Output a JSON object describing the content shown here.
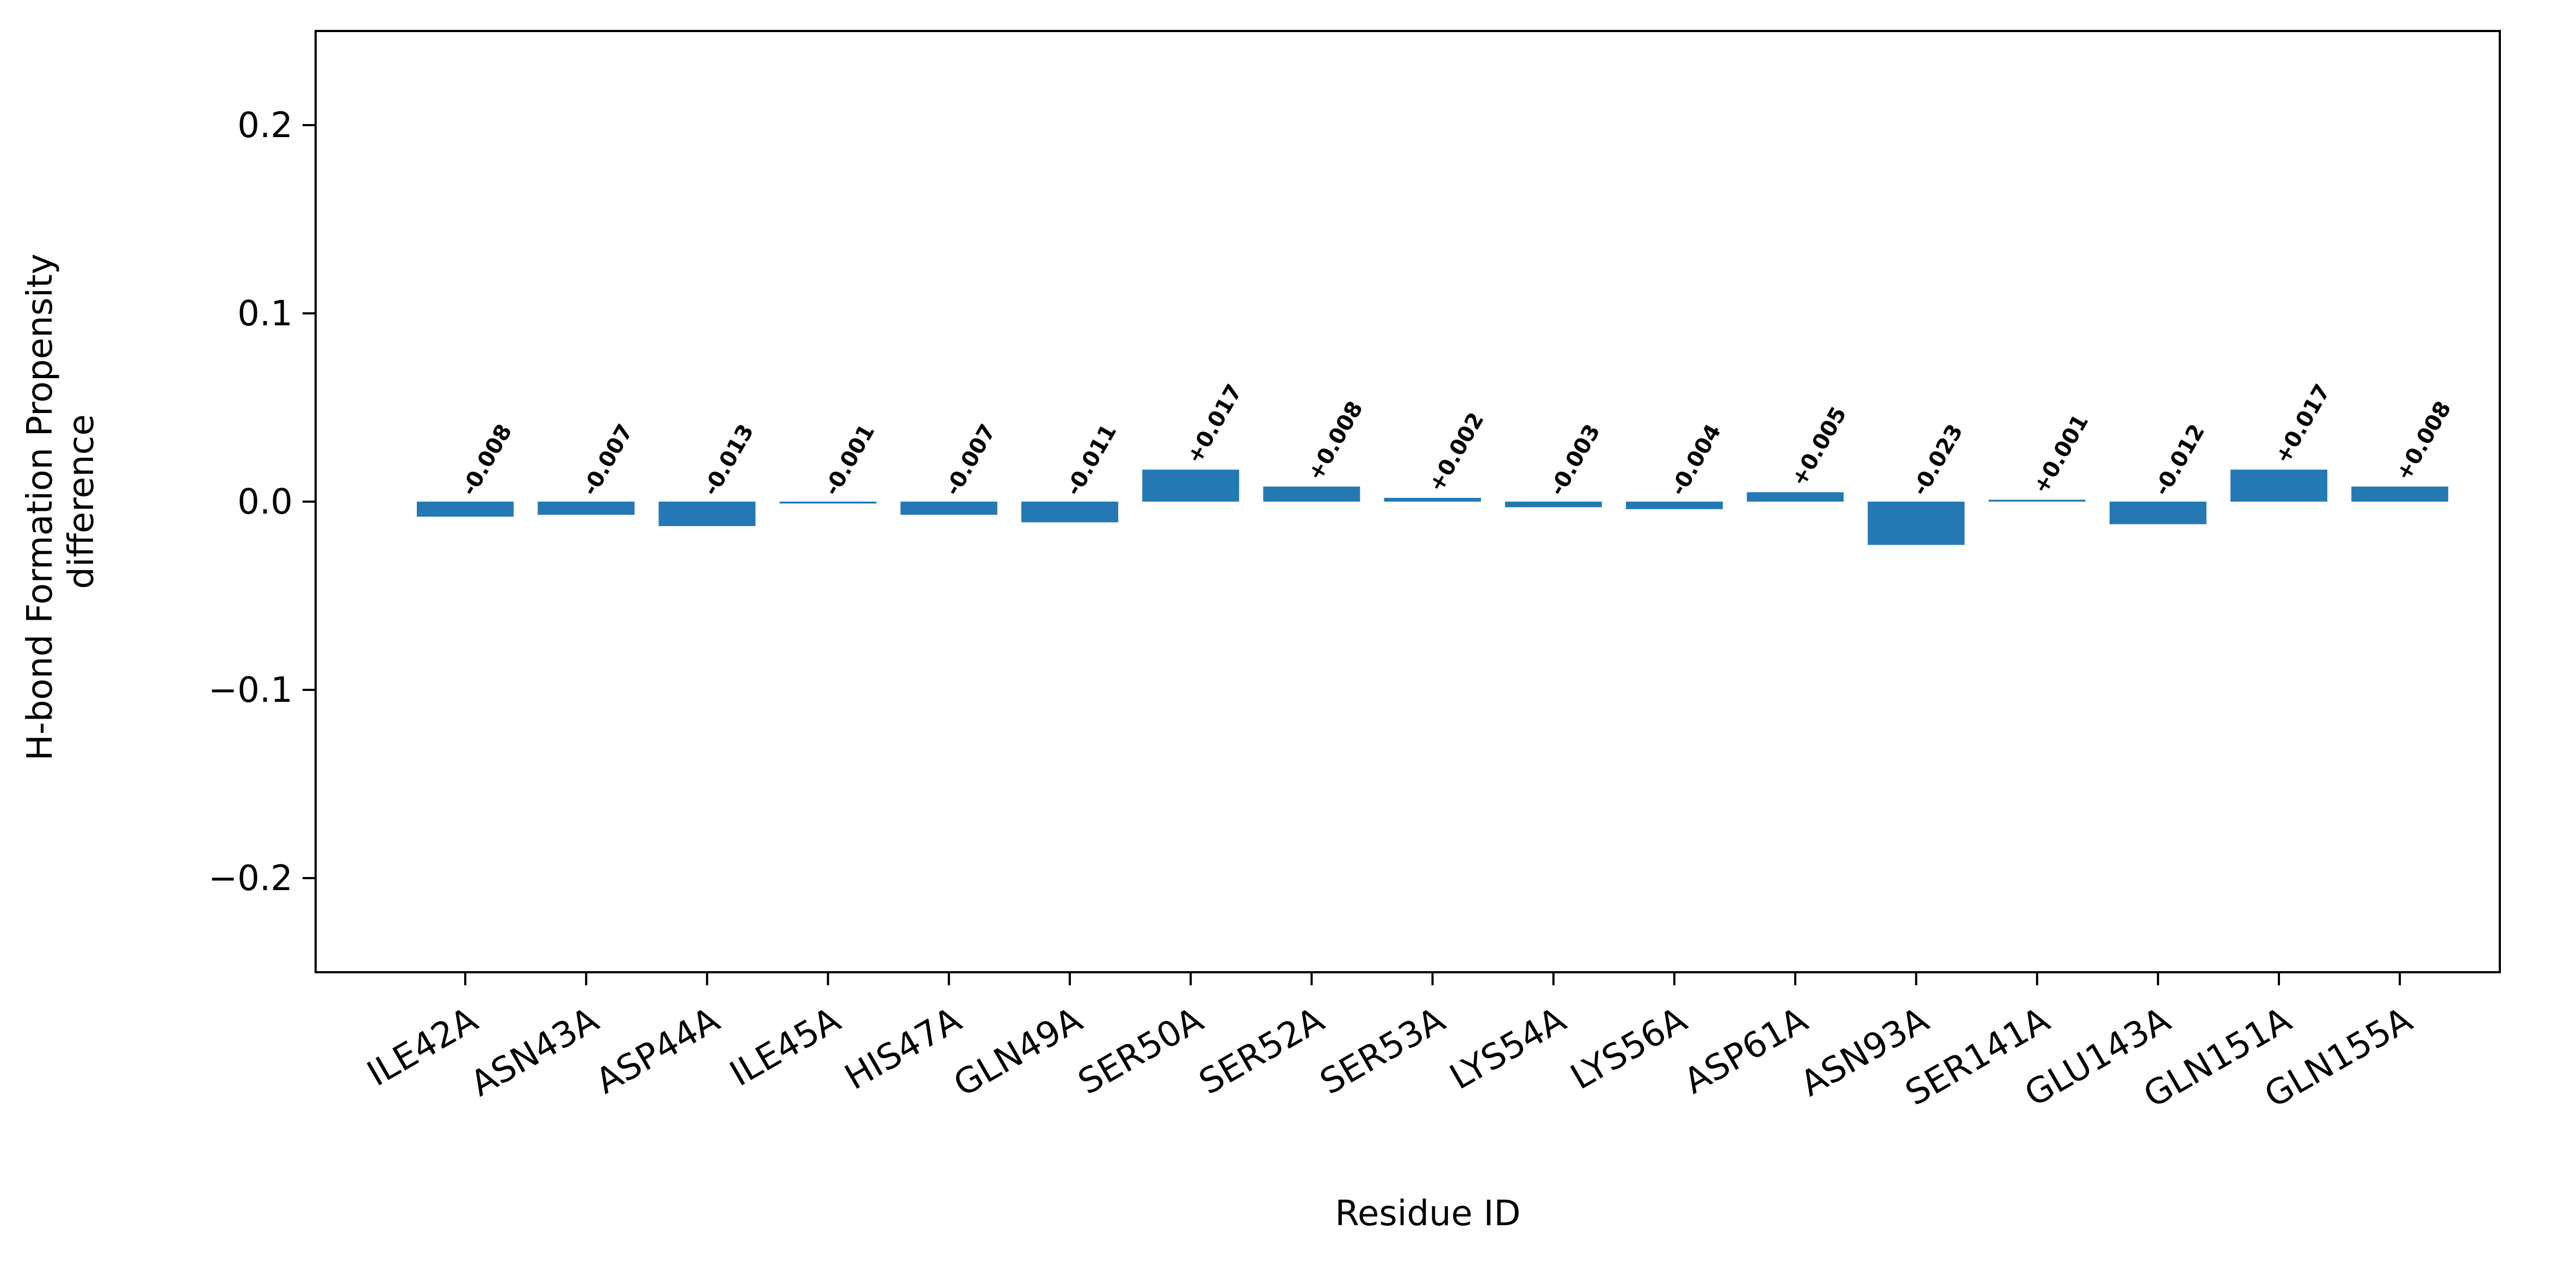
{
  "chart_data": {
    "type": "bar",
    "title": "",
    "xlabel": "Residue ID",
    "ylabel_lines": [
      "H-bond Formation Propensity",
      "difference"
    ],
    "ylim": [
      -0.25,
      0.25
    ],
    "yticks": [
      -0.2,
      -0.1,
      0.0,
      0.1,
      0.2
    ],
    "ytick_labels": [
      "−0.2",
      "−0.1",
      "0.0",
      "0.1",
      "0.2"
    ],
    "grid": false,
    "legend": "none",
    "bar_color": "#2479b4",
    "categories": [
      "ILE42A",
      "ASN43A",
      "ASP44A",
      "ILE45A",
      "HIS47A",
      "GLN49A",
      "SER50A",
      "SER52A",
      "SER53A",
      "LYS54A",
      "LYS56A",
      "ASP61A",
      "ASN93A",
      "SER141A",
      "GLU143A",
      "GLN151A",
      "GLN155A"
    ],
    "values": [
      -0.008,
      -0.007,
      -0.013,
      -0.001,
      -0.007,
      -0.011,
      0.017,
      0.008,
      0.002,
      -0.003,
      -0.004,
      0.005,
      -0.023,
      0.001,
      -0.012,
      0.017,
      0.008
    ],
    "data_labels": [
      "-0.008",
      "-0.007",
      "-0.013",
      "-0.001",
      "-0.007",
      "-0.011",
      "+0.017",
      "+0.008",
      "+0.002",
      "-0.003",
      "-0.004",
      "+0.005",
      "-0.023",
      "+0.001",
      "-0.012",
      "+0.017",
      "+0.008"
    ]
  }
}
